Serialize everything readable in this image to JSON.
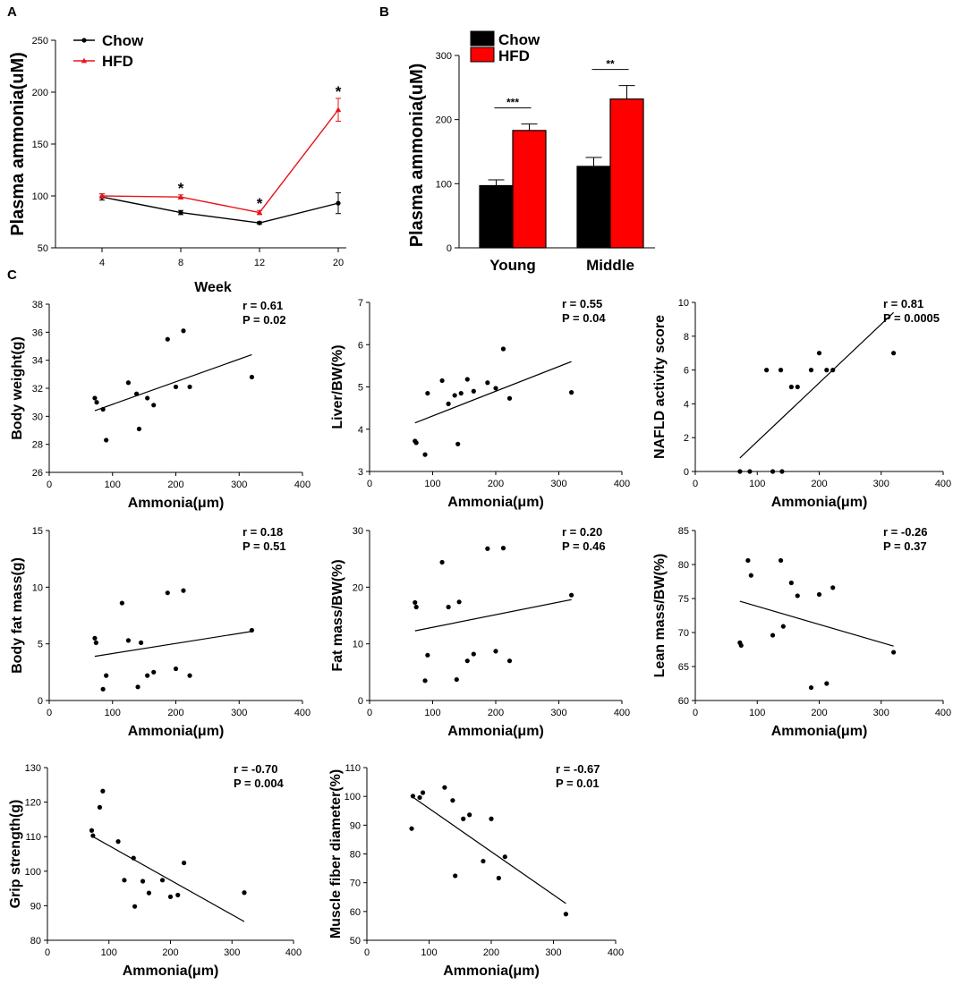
{
  "colors": {
    "chow": "#000000",
    "hfd": "#e8141b",
    "bar_chow": "#000000",
    "bar_hfd": "#ff0000"
  },
  "chart_data": [
    {
      "id": "A",
      "panel_label": "A",
      "type": "line",
      "title": "",
      "xlabel": "Week",
      "ylabel": "Plasma ammonia(uM)",
      "categories": [
        "4",
        "8",
        "12",
        "20"
      ],
      "ylim": [
        50,
        250
      ],
      "yticks": [
        "50",
        "100",
        "150",
        "200",
        "250"
      ],
      "series": [
        {
          "name": "Chow",
          "values": [
            99,
            84,
            74,
            93
          ],
          "errors": [
            3,
            2,
            1,
            10
          ]
        },
        {
          "name": "HFD",
          "values": [
            100,
            99,
            84,
            183
          ],
          "errors": [
            2,
            2,
            2,
            11
          ]
        }
      ],
      "annotations": [
        "*",
        "*",
        "*"
      ],
      "annotation_categories": [
        "8",
        "12",
        "20"
      ]
    },
    {
      "id": "B",
      "panel_label": "B",
      "type": "bar",
      "title": "",
      "xlabel": "",
      "ylabel": "Plasma ammonia(uM)",
      "categories": [
        "Young",
        "Middle"
      ],
      "ylim": [
        0,
        300
      ],
      "yticks": [
        "0",
        "100",
        "200",
        "300"
      ],
      "series": [
        {
          "name": "Chow",
          "values": [
            97,
            127
          ],
          "errors": [
            9,
            14
          ]
        },
        {
          "name": "HFD",
          "values": [
            183,
            232
          ],
          "errors": [
            10,
            21
          ]
        }
      ],
      "significance": [
        "***",
        "**"
      ]
    },
    {
      "id": "C1",
      "panel_label": "C",
      "type": "scatter",
      "xlabel": "Ammonia(μm)",
      "ylabel": "Body weight(g)",
      "xlim": [
        0,
        400
      ],
      "ylim": [
        26,
        38
      ],
      "xticks": [
        "0",
        "100",
        "200",
        "300",
        "400"
      ],
      "yticks": [
        "26",
        "28",
        "30",
        "32",
        "34",
        "36",
        "38"
      ],
      "stats": [
        "r = 0.61",
        "P = 0.02"
      ],
      "points": [
        [
          72,
          31.3
        ],
        [
          75,
          31.0
        ],
        [
          85,
          30.5
        ],
        [
          90,
          28.3
        ],
        [
          125,
          32.4
        ],
        [
          138,
          31.6
        ],
        [
          142,
          29.1
        ],
        [
          155,
          31.3
        ],
        [
          165,
          30.8
        ],
        [
          187,
          35.5
        ],
        [
          200,
          32.1
        ],
        [
          212,
          36.1
        ],
        [
          222,
          32.1
        ],
        [
          320,
          32.8
        ]
      ],
      "fit": [
        [
          72,
          30.4
        ],
        [
          320,
          34.4
        ]
      ]
    },
    {
      "id": "C2",
      "type": "scatter",
      "xlabel": "Ammonia(μm)",
      "ylabel": "Liver/BW(%)",
      "xlim": [
        0,
        400
      ],
      "ylim": [
        3,
        7
      ],
      "xticks": [
        "0",
        "100",
        "200",
        "300",
        "400"
      ],
      "yticks": [
        "3",
        "4",
        "5",
        "6",
        "7"
      ],
      "stats": [
        "r = 0.55",
        "P = 0.04"
      ],
      "points": [
        [
          72,
          3.72
        ],
        [
          74,
          3.68
        ],
        [
          88,
          3.4
        ],
        [
          92,
          4.85
        ],
        [
          115,
          5.15
        ],
        [
          125,
          4.6
        ],
        [
          135,
          4.8
        ],
        [
          140,
          3.65
        ],
        [
          145,
          4.85
        ],
        [
          155,
          5.18
        ],
        [
          165,
          4.9
        ],
        [
          187,
          5.1
        ],
        [
          200,
          4.97
        ],
        [
          212,
          5.9
        ],
        [
          222,
          4.73
        ],
        [
          320,
          4.87
        ]
      ],
      "fit": [
        [
          72,
          4.15
        ],
        [
          320,
          5.6
        ]
      ]
    },
    {
      "id": "C3",
      "type": "scatter",
      "xlabel": "Ammonia(μm)",
      "ylabel": "NAFLD activity score",
      "xlim": [
        0,
        400
      ],
      "ylim": [
        0,
        10
      ],
      "xticks": [
        "0",
        "100",
        "200",
        "300",
        "400"
      ],
      "yticks": [
        "0",
        "2",
        "4",
        "6",
        "8",
        "10"
      ],
      "stats": [
        "r = 0.81",
        "P = 0.0005"
      ],
      "points": [
        [
          72,
          0
        ],
        [
          88,
          0
        ],
        [
          115,
          6
        ],
        [
          125,
          0
        ],
        [
          138,
          6
        ],
        [
          140,
          0
        ],
        [
          155,
          5
        ],
        [
          165,
          5
        ],
        [
          187,
          6
        ],
        [
          200,
          7
        ],
        [
          212,
          6
        ],
        [
          222,
          6
        ],
        [
          320,
          7
        ]
      ],
      "fit": [
        [
          72,
          0.8
        ],
        [
          320,
          9.4
        ]
      ]
    },
    {
      "id": "C4",
      "type": "scatter",
      "xlabel": "Ammonia(μm)",
      "ylabel": "Body fat mass(g)",
      "xlim": [
        0,
        400
      ],
      "ylim": [
        0,
        15
      ],
      "xticks": [
        "0",
        "100",
        "200",
        "300",
        "400"
      ],
      "yticks": [
        "0",
        "5",
        "10",
        "15"
      ],
      "stats": [
        "r = 0.18",
        "P = 0.51"
      ],
      "points": [
        [
          72,
          5.5
        ],
        [
          74,
          5.1
        ],
        [
          85,
          1.0
        ],
        [
          90,
          2.2
        ],
        [
          115,
          8.6
        ],
        [
          125,
          5.3
        ],
        [
          140,
          1.2
        ],
        [
          145,
          5.1
        ],
        [
          155,
          2.2
        ],
        [
          165,
          2.5
        ],
        [
          187,
          9.5
        ],
        [
          200,
          2.8
        ],
        [
          212,
          9.7
        ],
        [
          222,
          2.2
        ],
        [
          320,
          6.2
        ]
      ],
      "fit": [
        [
          72,
          3.9
        ],
        [
          320,
          6.1
        ]
      ]
    },
    {
      "id": "C5",
      "type": "scatter",
      "xlabel": "Ammonia(μm)",
      "ylabel": "Fat mass/BW(%)",
      "xlim": [
        0,
        400
      ],
      "ylim": [
        0,
        30
      ],
      "xticks": [
        "0",
        "100",
        "200",
        "300",
        "400"
      ],
      "yticks": [
        "0",
        "10",
        "20",
        "30"
      ],
      "stats": [
        "r = 0.20",
        "P = 0.46"
      ],
      "points": [
        [
          72,
          17.3
        ],
        [
          74,
          16.5
        ],
        [
          88,
          3.5
        ],
        [
          92,
          8.0
        ],
        [
          115,
          24.4
        ],
        [
          125,
          16.5
        ],
        [
          138,
          3.7
        ],
        [
          142,
          17.4
        ],
        [
          155,
          7.0
        ],
        [
          165,
          8.2
        ],
        [
          187,
          26.8
        ],
        [
          200,
          8.7
        ],
        [
          212,
          26.9
        ],
        [
          222,
          7.0
        ],
        [
          320,
          18.6
        ]
      ],
      "fit": [
        [
          72,
          12.3
        ],
        [
          320,
          17.8
        ]
      ]
    },
    {
      "id": "C6",
      "type": "scatter",
      "xlabel": "Ammonia(μm)",
      "ylabel": "Lean mass/BW(%)",
      "xlim": [
        0,
        400
      ],
      "ylim": [
        60,
        85
      ],
      "xticks": [
        "0",
        "100",
        "200",
        "300",
        "400"
      ],
      "yticks": [
        "60",
        "65",
        "70",
        "75",
        "80",
        "85"
      ],
      "stats": [
        "r = -0.26",
        "P = 0.37"
      ],
      "points": [
        [
          72,
          68.5
        ],
        [
          74,
          68.1
        ],
        [
          85,
          80.6
        ],
        [
          90,
          78.4
        ],
        [
          125,
          69.6
        ],
        [
          138,
          80.6
        ],
        [
          142,
          70.9
        ],
        [
          155,
          77.3
        ],
        [
          165,
          75.4
        ],
        [
          187,
          61.9
        ],
        [
          200,
          75.6
        ],
        [
          212,
          62.5
        ],
        [
          222,
          76.6
        ],
        [
          320,
          67.1
        ]
      ],
      "fit": [
        [
          72,
          74.6
        ],
        [
          320,
          68.0
        ]
      ]
    },
    {
      "id": "C7",
      "type": "scatter",
      "xlabel": "Ammonia(μm)",
      "ylabel": "Grip strength(g)",
      "xlim": [
        0,
        400
      ],
      "ylim": [
        80,
        130
      ],
      "xticks": [
        "0",
        "100",
        "200",
        "300",
        "400"
      ],
      "yticks": [
        "80",
        "90",
        "100",
        "110",
        "120",
        "130"
      ],
      "stats": [
        "r = -0.70",
        "P = 0.004"
      ],
      "points": [
        [
          72,
          111.8
        ],
        [
          74,
          110.3
        ],
        [
          85,
          118.5
        ],
        [
          90,
          123.2
        ],
        [
          115,
          108.6
        ],
        [
          125,
          97.4
        ],
        [
          140,
          103.8
        ],
        [
          142,
          89.8
        ],
        [
          155,
          97.1
        ],
        [
          165,
          93.7
        ],
        [
          187,
          97.4
        ],
        [
          200,
          92.6
        ],
        [
          212,
          93.1
        ],
        [
          222,
          102.4
        ],
        [
          320,
          93.8
        ]
      ],
      "fit": [
        [
          72,
          110.2
        ],
        [
          320,
          85.4
        ]
      ]
    },
    {
      "id": "C8",
      "type": "scatter",
      "xlabel": "Ammonia(μm)",
      "ylabel": "Muscle fiber diameter(%)",
      "xlim": [
        0,
        400
      ],
      "ylim": [
        50,
        110
      ],
      "xticks": [
        "0",
        "100",
        "200",
        "300",
        "400"
      ],
      "yticks": [
        "50",
        "60",
        "70",
        "80",
        "90",
        "100",
        "110"
      ],
      "stats": [
        "r = -0.67",
        "P = 0.01"
      ],
      "points": [
        [
          72,
          88.8
        ],
        [
          74,
          100.1
        ],
        [
          85,
          99.6
        ],
        [
          90,
          101.3
        ],
        [
          125,
          103.1
        ],
        [
          138,
          98.6
        ],
        [
          142,
          72.4
        ],
        [
          155,
          92.2
        ],
        [
          165,
          93.6
        ],
        [
          187,
          77.5
        ],
        [
          200,
          92.2
        ],
        [
          212,
          71.6
        ],
        [
          222,
          79.0
        ],
        [
          320,
          59.1
        ]
      ],
      "fit": [
        [
          72,
          100.0
        ],
        [
          320,
          62.8
        ]
      ]
    }
  ]
}
